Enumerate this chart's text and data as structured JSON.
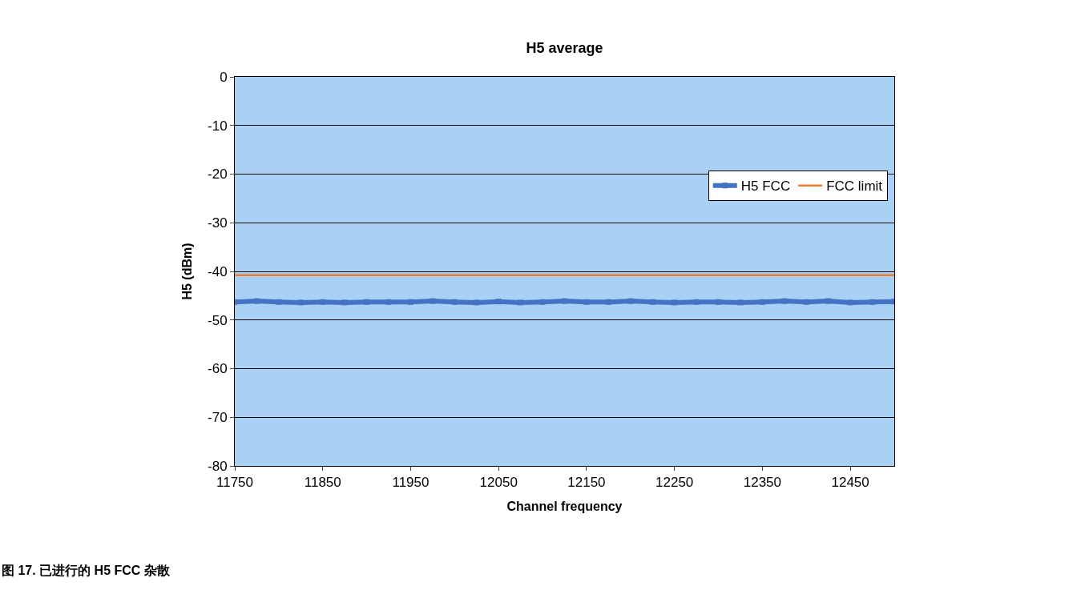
{
  "chart_data": {
    "type": "line",
    "title": "H5 average",
    "xlabel": "Channel frequency",
    "ylabel": "H5 (dBm)",
    "x": [
      11750,
      11775,
      11800,
      11825,
      11850,
      11875,
      11900,
      11925,
      11950,
      11975,
      12000,
      12025,
      12050,
      12075,
      12100,
      12125,
      12150,
      12175,
      12200,
      12225,
      12250,
      12275,
      12300,
      12325,
      12350,
      12375,
      12400,
      12425,
      12450,
      12475,
      12500
    ],
    "series": [
      {
        "name": "H5 FCC",
        "color": "#4472c4",
        "marker": "square",
        "values": [
          -46.3,
          -46.1,
          -46.3,
          -46.4,
          -46.3,
          -46.4,
          -46.3,
          -46.3,
          -46.3,
          -46.1,
          -46.3,
          -46.4,
          -46.2,
          -46.4,
          -46.3,
          -46.1,
          -46.3,
          -46.3,
          -46.1,
          -46.3,
          -46.4,
          -46.3,
          -46.3,
          -46.4,
          -46.3,
          -46.1,
          -46.3,
          -46.1,
          -46.4,
          -46.3,
          -46.2
        ]
      },
      {
        "name": "FCC limit",
        "color": "#ed7d31",
        "marker": "none",
        "x": [
          11750,
          12500
        ],
        "values": [
          -40.8,
          -40.8
        ]
      }
    ],
    "xlim": [
      11750,
      12500
    ],
    "xticks": [
      11750,
      11850,
      11950,
      12050,
      12150,
      12250,
      12350,
      12450
    ],
    "ylim": [
      -80,
      0
    ],
    "yticks": [
      -80,
      -70,
      -60,
      -50,
      -40,
      -30,
      -20,
      -10,
      0
    ],
    "grid": "y",
    "legend": "right",
    "line_style": "solid",
    "annotations": [
      "图 17. 已进行的 H5 FCC 杂散"
    ]
  }
}
